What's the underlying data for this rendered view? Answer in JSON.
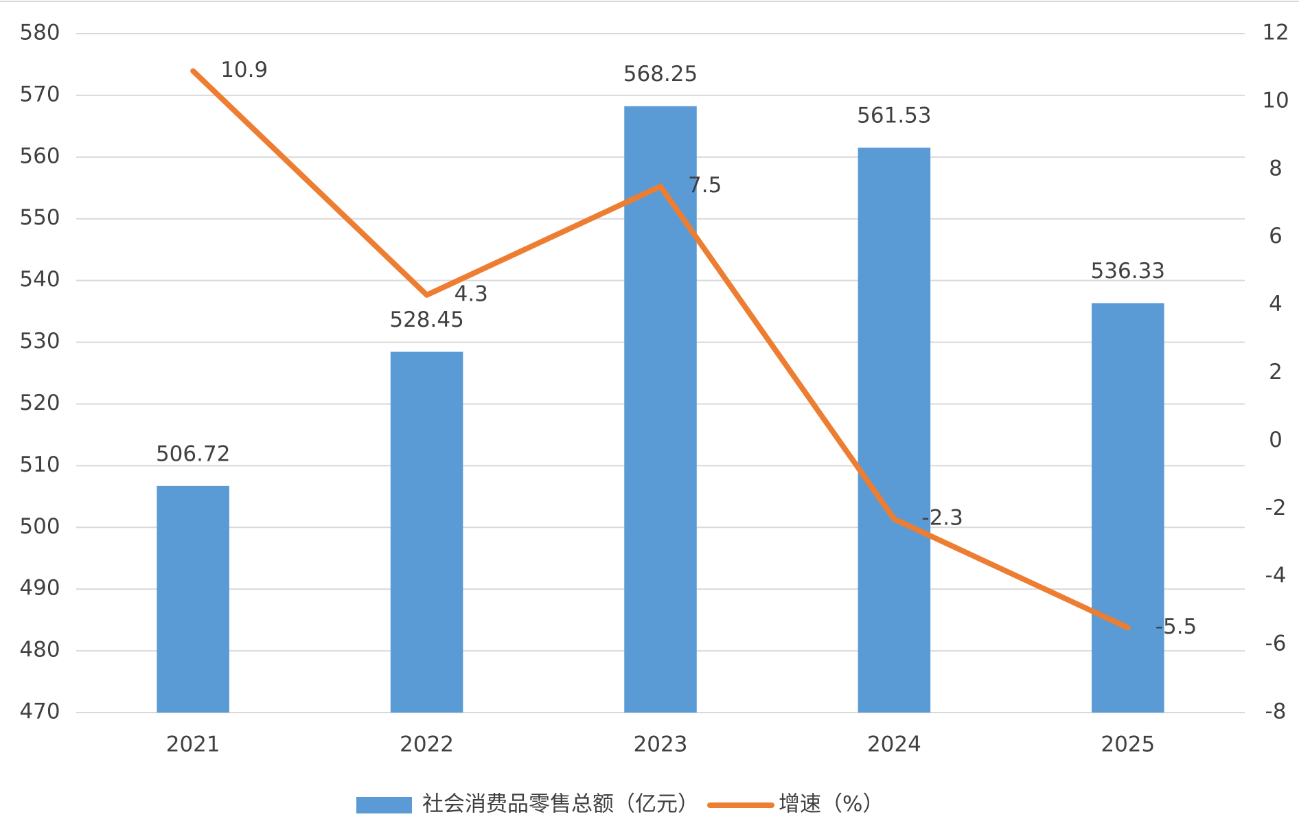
{
  "chart_data": {
    "type": "bar",
    "categories": [
      "2021",
      "2022",
      "2023",
      "2024",
      "2025"
    ],
    "series": [
      {
        "name": "社会消费品零售总额（亿元）",
        "type": "bar",
        "color": "#5b9bd5",
        "values": [
          506.72,
          528.45,
          568.25,
          561.53,
          536.33
        ]
      },
      {
        "name": "增速（%）",
        "type": "line",
        "axis": "y2",
        "color": "#ed7d31",
        "values": [
          10.9,
          4.3,
          7.5,
          -2.3,
          -5.5
        ]
      }
    ],
    "ylim": [
      470,
      580
    ],
    "yticks": [
      470,
      480,
      490,
      500,
      510,
      520,
      530,
      540,
      550,
      560,
      570,
      580
    ],
    "y2lim": [
      -8,
      12
    ],
    "y2ticks": [
      -8,
      -6,
      -4,
      -2,
      0,
      2,
      4,
      6,
      8,
      10,
      12
    ],
    "grid": true,
    "legend": "bottom"
  }
}
